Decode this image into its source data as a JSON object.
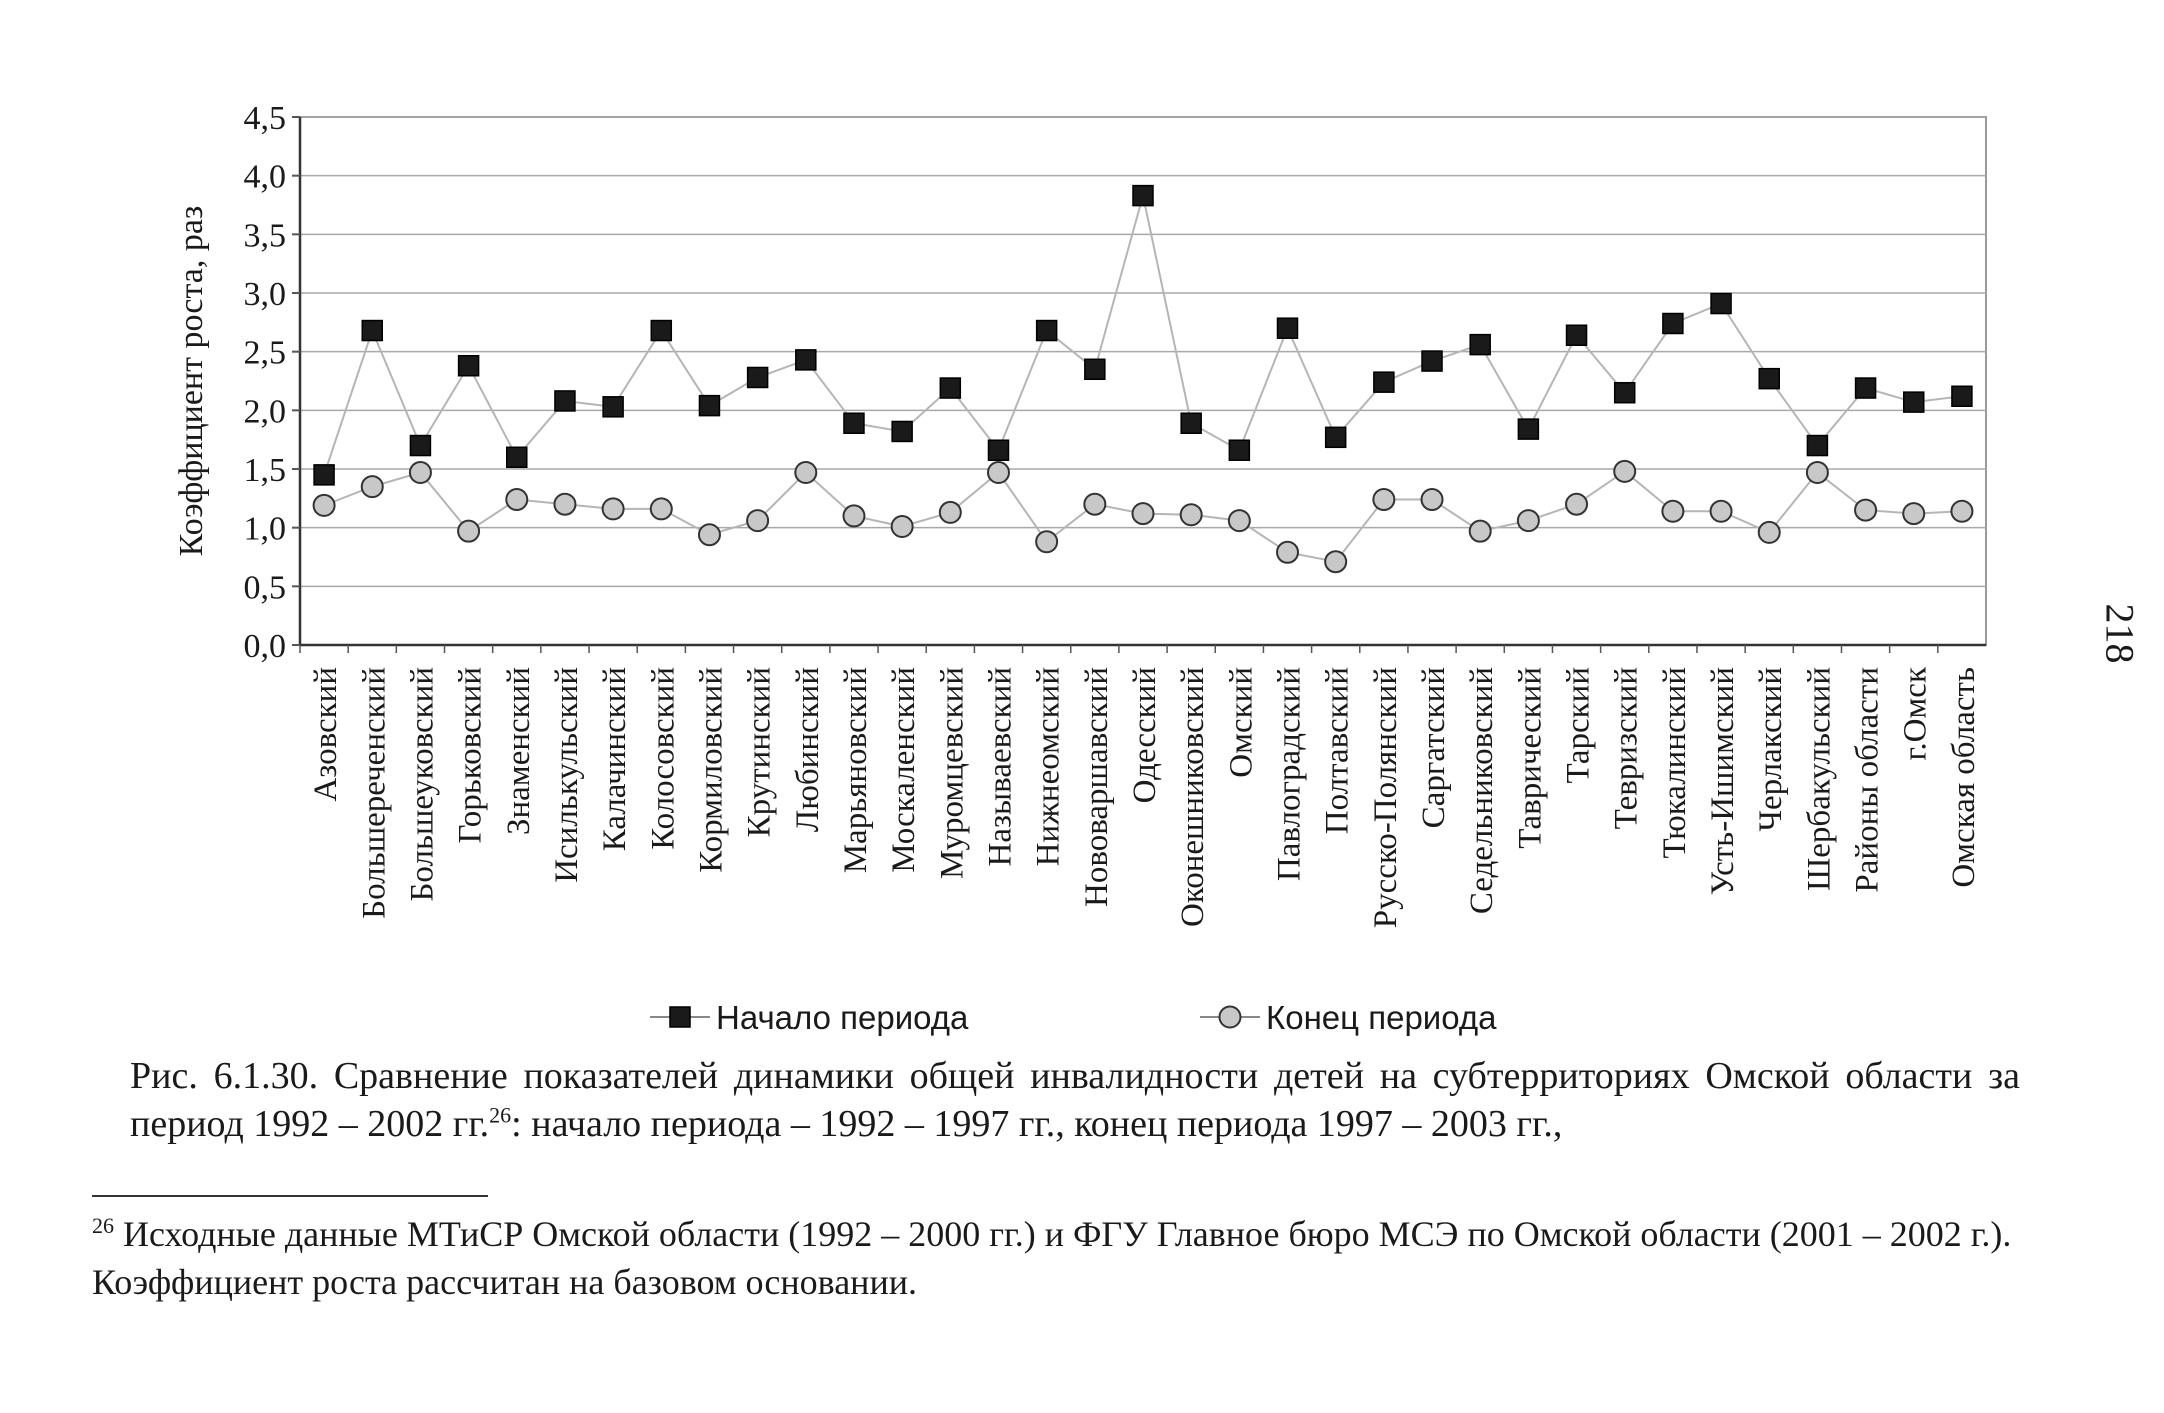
{
  "page": {
    "page_number": "218",
    "caption_part1": "Рис. 6.1.30. Сравнение показателей динамики общей инвалидности детей на субтерриториях Омской области за период 1992 – 2002 гг.",
    "caption_sup": "26",
    "caption_part2": ": начало периода – 1992 – 1997 гг., конец периода 1997 – 2003 гг.,",
    "footnote_mark": "26",
    "footnote_text": " Исходные данные МТиСР Омской области (1992 – 2000 гг.) и ФГУ Главное бюро МСЭ по Омской области (2001 – 2002 г.). Коэффициент роста рассчитан на базовом основании."
  },
  "chart_data": {
    "type": "line",
    "ylabel": "Коэффициент роста, раз",
    "xlabel": "",
    "ylim": [
      0,
      4.5
    ],
    "yticks": [
      "0,0",
      "0,5",
      "1,0",
      "1,5",
      "2,0",
      "2,5",
      "3,0",
      "3,5",
      "4,0",
      "4,5"
    ],
    "grid": "horizontal",
    "legend_position": "bottom",
    "categories": [
      "Азовский",
      "Большереченский",
      "Большеуковский",
      "Горьковский",
      "Знаменский",
      "Исилькульский",
      "Калачинский",
      "Колосовский",
      "Кормиловский",
      "Крутинский",
      "Любинский",
      "Марьяновский",
      "Москаленский",
      "Муромцевский",
      "Называевский",
      "Нижнеомский",
      "Нововаршавский",
      "Одесский",
      "Оконешниковский",
      "Омский",
      "Павлоградский",
      "Полтавский",
      "Русско-Полянский",
      "Саргатский",
      "Седельниковский",
      "Таврический",
      "Тарский",
      "Тевризский",
      "Тюкалинский",
      "Усть-Ишимский",
      "Черлакский",
      "Шербакульский",
      "Районы области",
      "г.Омск",
      "Омская область"
    ],
    "series": [
      {
        "name": "Начало периода",
        "marker": "square",
        "color": "#1a1a1a",
        "values": [
          1.45,
          2.68,
          1.7,
          2.38,
          1.6,
          2.08,
          2.03,
          2.68,
          2.04,
          2.28,
          2.43,
          1.89,
          1.82,
          2.19,
          1.66,
          2.68,
          2.35,
          3.83,
          1.89,
          1.66,
          2.7,
          1.77,
          2.24,
          2.42,
          2.56,
          1.84,
          2.64,
          2.15,
          2.74,
          2.91,
          2.27,
          1.7,
          2.19,
          2.07,
          2.12
        ]
      },
      {
        "name": "Конец периода",
        "marker": "circle",
        "color": "#c8c8c8",
        "values": [
          1.19,
          1.35,
          1.47,
          0.97,
          1.24,
          1.2,
          1.16,
          1.16,
          0.94,
          1.06,
          1.47,
          1.1,
          1.01,
          1.13,
          1.47,
          0.88,
          1.2,
          1.12,
          1.11,
          1.06,
          0.79,
          0.71,
          1.24,
          1.24,
          0.97,
          1.06,
          1.2,
          1.48,
          1.14,
          1.14,
          0.96,
          1.47,
          1.15,
          1.12,
          1.14
        ]
      }
    ]
  }
}
